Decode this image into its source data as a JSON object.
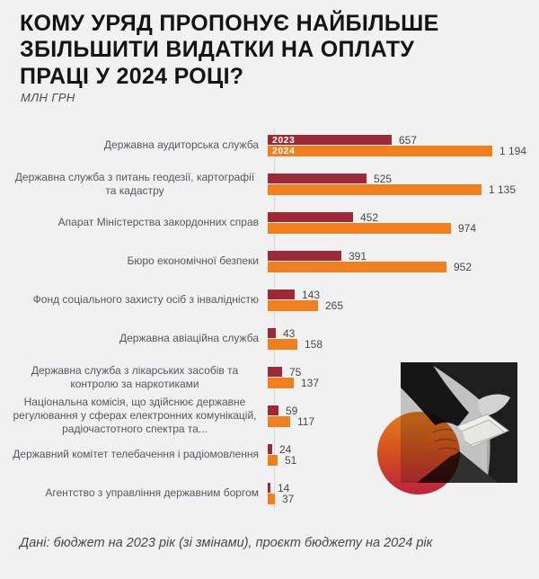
{
  "page": {
    "title_lines": [
      "КОМУ УРЯД ПРОПОНУЄ НАЙБІЛЬШЕ",
      "ЗБІЛЬШИТИ ВИДАТКИ НА ОПЛАТУ",
      "ПРАЦІ У 2024 РОЦІ?"
    ],
    "units_label": "МЛН ГРН",
    "source_note": "Дані: бюджет на 2023 рік (зі змінами), проєкт бюджету на 2024 рік"
  },
  "chart_data": {
    "type": "bar",
    "orientation": "horizontal",
    "title": "Кому уряд пропонує найбільше збільшити видатки на оплату праці у 2024 році?",
    "units": "млн грн",
    "xlim": [
      0,
      1250
    ],
    "grid": false,
    "legend_position": "inside-first-row-bars",
    "categories": [
      "Державна аудиторська служба",
      "Державна служба з питань геодезії, картографії та кадастру",
      "Апарат Міністерства закордонних справ",
      "Бюро економічної безпеки",
      "Фонд соціального захисту осіб з інвалідністю",
      "Державна авіаційна служба",
      "Державна служба з лікарських засобів та контролю за наркотиками",
      "Національна комісія, що здійснює державне регулювання у сферах електронних комунікацій, радіочастотного спектра та...",
      "Державний комітет телебачення і радіомовлення",
      "Агентство з управління державним боргом"
    ],
    "series": [
      {
        "name": "2023",
        "color": "#9e2936",
        "values": [
          657,
          525,
          452,
          391,
          143,
          43,
          75,
          59,
          24,
          14
        ],
        "display": [
          "657",
          "525",
          "452",
          "391",
          "143",
          "43",
          "75",
          "59",
          "24",
          "14"
        ]
      },
      {
        "name": "2024",
        "color": "#f0801d",
        "values": [
          1194,
          1135,
          974,
          952,
          265,
          158,
          137,
          117,
          51,
          37
        ],
        "display": [
          "1 194",
          "1 135",
          "974",
          "952",
          "265",
          "158",
          "137",
          "117",
          "51",
          "37"
        ]
      }
    ]
  },
  "style": {
    "background": "#f1f1f1",
    "axis_color": "#d9d9d9",
    "label_color": "#56575c",
    "value_color": "#48494d",
    "circle_gradient_top": "#f0851e",
    "circle_gradient_bottom": "#ca2344"
  }
}
